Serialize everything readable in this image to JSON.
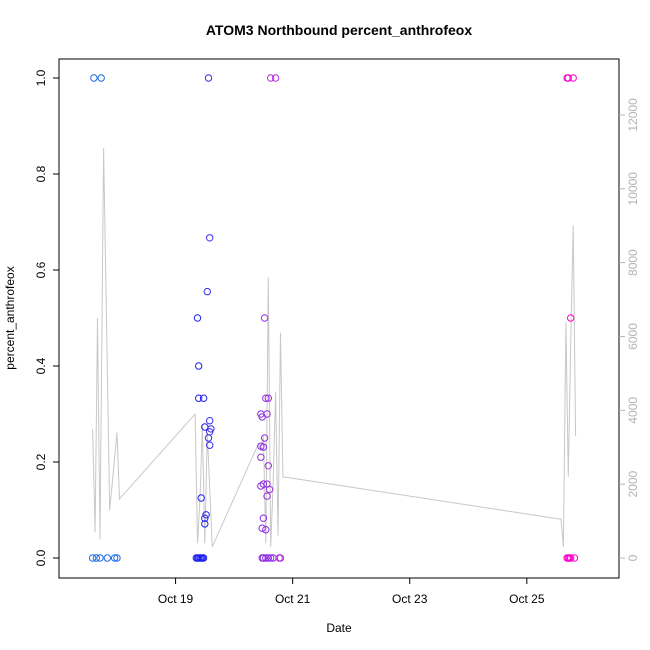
{
  "chart_data": {
    "type": "scatter",
    "title": "ATOM3 Northbound percent_anthrofeox",
    "xlabel": "Date",
    "ylabel": "percent_anthrofeox",
    "xlim": [
      "2016-10-17 08:00",
      "2016-10-26 06:00"
    ],
    "ylim": [
      0,
      1
    ],
    "x_ticks": [
      "2016-10-19",
      "2016-10-21",
      "2016-10-23",
      "2016-10-25"
    ],
    "x_tick_labels": [
      "Oct 19",
      "Oct 21",
      "Oct 23",
      "Oct 25"
    ],
    "y_ticks": [
      0.0,
      0.2,
      0.4,
      0.6,
      0.8,
      1.0
    ],
    "y_tick_labels": [
      "0.0",
      "0.2",
      "0.4",
      "0.6",
      "0.8",
      "1.0"
    ],
    "y2_ticks": [
      0,
      2000,
      4000,
      6000,
      8000,
      10000,
      12000
    ],
    "y2_tick_labels": [
      "0",
      "2000",
      "4000",
      "6000",
      "8000",
      "10000",
      "12000"
    ],
    "y2lim": [
      0,
      13000
    ],
    "colors": {
      "points_start": "#1e6be6",
      "points_mid": "#2020ee",
      "points_later": "#8a2be2",
      "points_end": "#ff00cc",
      "line": "#c8c8c8",
      "right_axis": "#b3b3b3",
      "axis": "#000000"
    },
    "points": [
      {
        "x": "2016-10-17 14:30",
        "y": 1.0,
        "color": "#1e6be6"
      },
      {
        "x": "2016-10-17 17:30",
        "y": 1.0,
        "color": "#1e6be6"
      },
      {
        "x": "2016-10-17 14:00",
        "y": 0.0,
        "color": "#1e6be6"
      },
      {
        "x": "2016-10-17 15:30",
        "y": 0.0,
        "color": "#1e6be6"
      },
      {
        "x": "2016-10-17 17:00",
        "y": 0.0,
        "color": "#1e6be6"
      },
      {
        "x": "2016-10-17 20:00",
        "y": 0.0,
        "color": "#1e6be6"
      },
      {
        "x": "2016-10-17 23:00",
        "y": 0.0,
        "color": "#1e6be6"
      },
      {
        "x": "2016-10-18 00:00",
        "y": 0.0,
        "color": "#1e6be6"
      },
      {
        "x": "2016-10-19 08:30",
        "y": 0.0,
        "color": "#2020ee"
      },
      {
        "x": "2016-10-19 09:00",
        "y": 0.0,
        "color": "#2020ee"
      },
      {
        "x": "2016-10-19 09:30",
        "y": 0.0,
        "color": "#2020ee"
      },
      {
        "x": "2016-10-19 10:00",
        "y": 0.0,
        "color": "#2020ee"
      },
      {
        "x": "2016-10-19 10:30",
        "y": 0.0,
        "color": "#2020ee"
      },
      {
        "x": "2016-10-19 11:00",
        "y": 0.0,
        "color": "#2020ee"
      },
      {
        "x": "2016-10-19 11:30",
        "y": 0.0,
        "color": "#2020ee"
      },
      {
        "x": "2016-10-19 09:00",
        "y": 0.5,
        "color": "#2020ee"
      },
      {
        "x": "2016-10-19 09:30",
        "y": 0.4,
        "color": "#2020ee"
      },
      {
        "x": "2016-10-19 09:30",
        "y": 0.333,
        "color": "#2020ee"
      },
      {
        "x": "2016-10-19 11:30",
        "y": 0.333,
        "color": "#2020ee"
      },
      {
        "x": "2016-10-19 10:30",
        "y": 0.125,
        "color": "#2020ee"
      },
      {
        "x": "2016-10-19 12:00",
        "y": 0.273,
        "color": "#2020ee"
      },
      {
        "x": "2016-10-19 12:30",
        "y": 0.09,
        "color": "#2020ee"
      },
      {
        "x": "2016-10-19 12:00",
        "y": 0.083,
        "color": "#2020ee"
      },
      {
        "x": "2016-10-19 12:00",
        "y": 0.071,
        "color": "#2020ee"
      },
      {
        "x": "2016-10-19 13:00",
        "y": 0.555,
        "color": "#3a2ee8"
      },
      {
        "x": "2016-10-19 14:00",
        "y": 0.667,
        "color": "#3a2ee8"
      },
      {
        "x": "2016-10-19 14:00",
        "y": 0.286,
        "color": "#3a2ee8"
      },
      {
        "x": "2016-10-19 14:30",
        "y": 0.269,
        "color": "#3a2ee8"
      },
      {
        "x": "2016-10-19 14:00",
        "y": 0.263,
        "color": "#3a2ee8"
      },
      {
        "x": "2016-10-19 13:30",
        "y": 0.25,
        "color": "#3a2ee8"
      },
      {
        "x": "2016-10-19 14:00",
        "y": 0.235,
        "color": "#3a2ee8"
      },
      {
        "x": "2016-10-19 13:30",
        "y": 1.0,
        "color": "#3a2ee8"
      },
      {
        "x": "2016-10-20 11:00",
        "y": 0.3,
        "color": "#8a2be2"
      },
      {
        "x": "2016-10-20 11:30",
        "y": 0.294,
        "color": "#8a2be2"
      },
      {
        "x": "2016-10-20 11:00",
        "y": 0.233,
        "color": "#8a2be2"
      },
      {
        "x": "2016-10-20 12:00",
        "y": 0.231,
        "color": "#8a2be2"
      },
      {
        "x": "2016-10-20 11:00",
        "y": 0.21,
        "color": "#8a2be2"
      },
      {
        "x": "2016-10-20 11:00",
        "y": 0.15,
        "color": "#8a2be2"
      },
      {
        "x": "2016-10-20 12:00",
        "y": 0.154,
        "color": "#8a2be2"
      },
      {
        "x": "2016-10-20 12:00",
        "y": 0.083,
        "color": "#8a2be2"
      },
      {
        "x": "2016-10-20 11:30",
        "y": 0.062,
        "color": "#8a2be2"
      },
      {
        "x": "2016-10-20 13:00",
        "y": 0.059,
        "color": "#8a2be2"
      },
      {
        "x": "2016-10-20 12:00",
        "y": 0.0,
        "color": "#8a2be2"
      },
      {
        "x": "2016-10-20 13:00",
        "y": 0.0,
        "color": "#8a2be2"
      },
      {
        "x": "2016-10-20 14:00",
        "y": 0.0,
        "color": "#8a2be2"
      },
      {
        "x": "2016-10-20 15:00",
        "y": 0.0,
        "color": "#8a2be2"
      },
      {
        "x": "2016-10-20 16:00",
        "y": 0.0,
        "color": "#8a2be2"
      },
      {
        "x": "2016-10-20 11:30",
        "y": 0.0,
        "color": "#8a2be2"
      },
      {
        "x": "2016-10-20 12:30",
        "y": 0.5,
        "color": "#9b2fe0"
      },
      {
        "x": "2016-10-20 13:00",
        "y": 0.333,
        "color": "#9b2fe0"
      },
      {
        "x": "2016-10-20 14:00",
        "y": 0.333,
        "color": "#9b2fe0"
      },
      {
        "x": "2016-10-20 13:30",
        "y": 0.3,
        "color": "#9b2fe0"
      },
      {
        "x": "2016-10-20 12:30",
        "y": 0.25,
        "color": "#9b2fe0"
      },
      {
        "x": "2016-10-20 14:00",
        "y": 0.192,
        "color": "#9b2fe0"
      },
      {
        "x": "2016-10-20 13:30",
        "y": 0.154,
        "color": "#9b2fe0"
      },
      {
        "x": "2016-10-20 14:30",
        "y": 0.143,
        "color": "#9b2fe0"
      },
      {
        "x": "2016-10-20 13:30",
        "y": 0.129,
        "color": "#9b2fe0"
      },
      {
        "x": "2016-10-20 15:00",
        "y": 1.0,
        "color": "#b530d8"
      },
      {
        "x": "2016-10-20 17:00",
        "y": 1.0,
        "color": "#b530d8"
      },
      {
        "x": "2016-10-20 18:30",
        "y": 0.0,
        "color": "#b530d8"
      },
      {
        "x": "2016-10-20 19:00",
        "y": 0.0,
        "color": "#b530d8"
      },
      {
        "x": "2016-10-25 16:30",
        "y": 1.0,
        "color": "#ff00cc"
      },
      {
        "x": "2016-10-25 17:00",
        "y": 1.0,
        "color": "#ff00cc"
      },
      {
        "x": "2016-10-25 19:00",
        "y": 1.0,
        "color": "#ff00cc"
      },
      {
        "x": "2016-10-25 18:00",
        "y": 0.5,
        "color": "#ff00cc"
      },
      {
        "x": "2016-10-25 16:30",
        "y": 0.0,
        "color": "#ff00cc"
      },
      {
        "x": "2016-10-25 17:00",
        "y": 0.0,
        "color": "#ff00cc"
      },
      {
        "x": "2016-10-25 17:30",
        "y": 0.0,
        "color": "#ff00cc"
      },
      {
        "x": "2016-10-25 18:00",
        "y": 0.0,
        "color": "#ff00cc"
      },
      {
        "x": "2016-10-25 19:30",
        "y": 0.0,
        "color": "#ff00cc"
      }
    ],
    "line_series": {
      "axis": "right",
      "points": [
        {
          "x": "2016-10-17 14:00",
          "y": 3500
        },
        {
          "x": "2016-10-17 15:00",
          "y": 700
        },
        {
          "x": "2016-10-17 16:00",
          "y": 6500
        },
        {
          "x": "2016-10-17 17:00",
          "y": 500
        },
        {
          "x": "2016-10-17 18:30",
          "y": 11100
        },
        {
          "x": "2016-10-17 21:00",
          "y": 1300
        },
        {
          "x": "2016-10-18 00:00",
          "y": 3400
        },
        {
          "x": "2016-10-18 01:00",
          "y": 1600
        },
        {
          "x": "2016-10-19 08:00",
          "y": 3900
        },
        {
          "x": "2016-10-19 09:00",
          "y": 400
        },
        {
          "x": "2016-10-19 10:00",
          "y": 1600
        },
        {
          "x": "2016-10-19 11:00",
          "y": 3600
        },
        {
          "x": "2016-10-19 12:00",
          "y": 400
        },
        {
          "x": "2016-10-19 13:00",
          "y": 3400
        },
        {
          "x": "2016-10-19 15:00",
          "y": 300
        },
        {
          "x": "2016-10-20 10:00",
          "y": 3100
        },
        {
          "x": "2016-10-20 11:00",
          "y": 2900
        },
        {
          "x": "2016-10-20 12:00",
          "y": 3300
        },
        {
          "x": "2016-10-20 13:00",
          "y": 400
        },
        {
          "x": "2016-10-20 14:00",
          "y": 7600
        },
        {
          "x": "2016-10-20 15:00",
          "y": 300
        },
        {
          "x": "2016-10-20 16:00",
          "y": 2000
        },
        {
          "x": "2016-10-20 17:00",
          "y": 4500
        },
        {
          "x": "2016-10-20 18:00",
          "y": 600
        },
        {
          "x": "2016-10-20 19:00",
          "y": 6100
        },
        {
          "x": "2016-10-20 20:00",
          "y": 2200
        },
        {
          "x": "2016-10-25 14:00",
          "y": 1050
        },
        {
          "x": "2016-10-25 15:00",
          "y": 300
        },
        {
          "x": "2016-10-25 16:00",
          "y": 6400
        },
        {
          "x": "2016-10-25 17:00",
          "y": 2200
        },
        {
          "x": "2016-10-25 18:00",
          "y": 5800
        },
        {
          "x": "2016-10-25 19:00",
          "y": 9000
        },
        {
          "x": "2016-10-25 20:00",
          "y": 3300
        }
      ]
    }
  }
}
